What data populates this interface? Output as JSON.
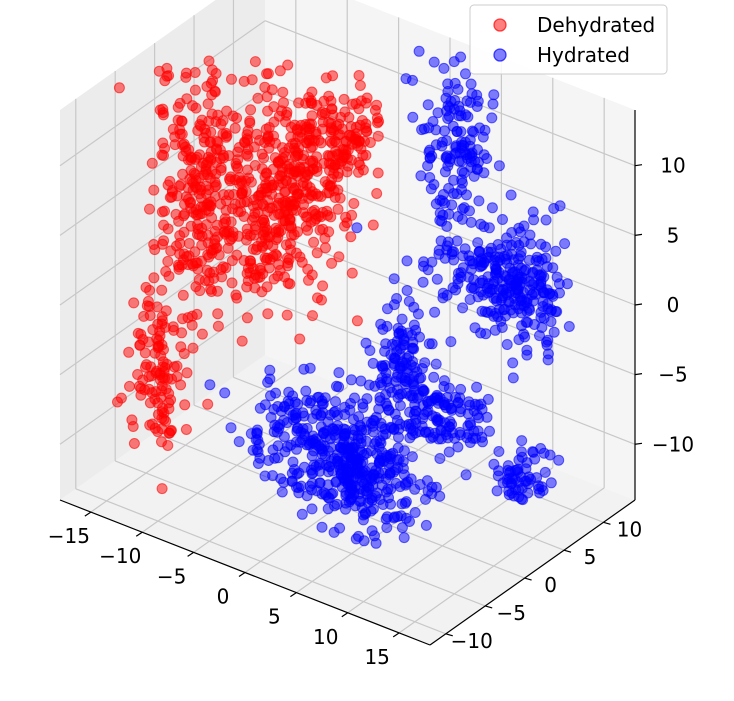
{
  "chart_data": {
    "type": "scatter",
    "projection": "3d",
    "title": "",
    "xlabel": "",
    "ylabel": "",
    "zlabel": "",
    "xlim": [
      -18,
      18
    ],
    "ylim": [
      -12,
      14
    ],
    "zlim": [
      -14,
      14
    ],
    "grid": true,
    "legend_position": "top-right",
    "x_ticks": [
      "−15",
      "−10",
      "−5",
      "0",
      "5",
      "10",
      "15"
    ],
    "y_ticks": [
      "−10",
      "−5",
      "0",
      "5",
      "10"
    ],
    "z_ticks": [
      "−10",
      "−5",
      "0",
      "5",
      "10"
    ],
    "x_tick_values": [
      -15,
      -10,
      -5,
      0,
      5,
      10,
      15
    ],
    "y_tick_values": [
      -10,
      -5,
      0,
      5,
      10
    ],
    "z_tick_values": [
      -10,
      -5,
      0,
      5,
      10
    ],
    "series": [
      {
        "name": "Dehydrated",
        "color": "#ff0000",
        "alpha": 0.5,
        "clusters": [
          {
            "x": -12,
            "y": -2,
            "z": 6,
            "spread": [
              1.8,
              1.6,
              4.5
            ],
            "n": 260
          },
          {
            "x": -9,
            "y": 2,
            "z": 4,
            "spread": [
              2.2,
              1.6,
              3.5
            ],
            "n": 240
          },
          {
            "x": -6,
            "y": 4,
            "z": 6,
            "spread": [
              2.0,
              1.4,
              3.5
            ],
            "n": 200
          },
          {
            "x": -4,
            "y": 6,
            "z": 9,
            "spread": [
              1.6,
              1.2,
              1.6
            ],
            "n": 90
          },
          {
            "x": -13,
            "y": -6,
            "z": -6,
            "spread": [
              1.2,
              1.0,
              3.5
            ],
            "n": 120
          }
        ]
      },
      {
        "name": "Hydrated",
        "color": "#0000ff",
        "alpha": 0.5,
        "clusters": [
          {
            "x": 2,
            "y": 12,
            "z": 7,
            "spread": [
              1.4,
              1.0,
              3.0
            ],
            "n": 140
          },
          {
            "x": 6,
            "y": 12,
            "z": -1,
            "spread": [
              3.0,
              1.2,
              1.6
            ],
            "n": 160
          },
          {
            "x": 9,
            "y": 12,
            "z": 0,
            "spread": [
              1.8,
              1.2,
              2.2
            ],
            "n": 120
          },
          {
            "x": 0,
            "y": 8,
            "z": -8,
            "spread": [
              1.4,
              1.0,
              3.0
            ],
            "n": 150
          },
          {
            "x": 3,
            "y": 10,
            "z": -11,
            "spread": [
              2.0,
              1.2,
              1.2
            ],
            "n": 90
          },
          {
            "x": -4,
            "y": 4,
            "z": -12,
            "spread": [
              3.5,
              2.5,
              1.4
            ],
            "n": 260
          },
          {
            "x": 2,
            "y": 0,
            "z": -12,
            "spread": [
              3.0,
              2.0,
              1.6
            ],
            "n": 200
          },
          {
            "x": 10,
            "y": 10,
            "z": -13,
            "spread": [
              1.0,
              0.8,
              1.0
            ],
            "n": 60
          }
        ]
      }
    ]
  }
}
